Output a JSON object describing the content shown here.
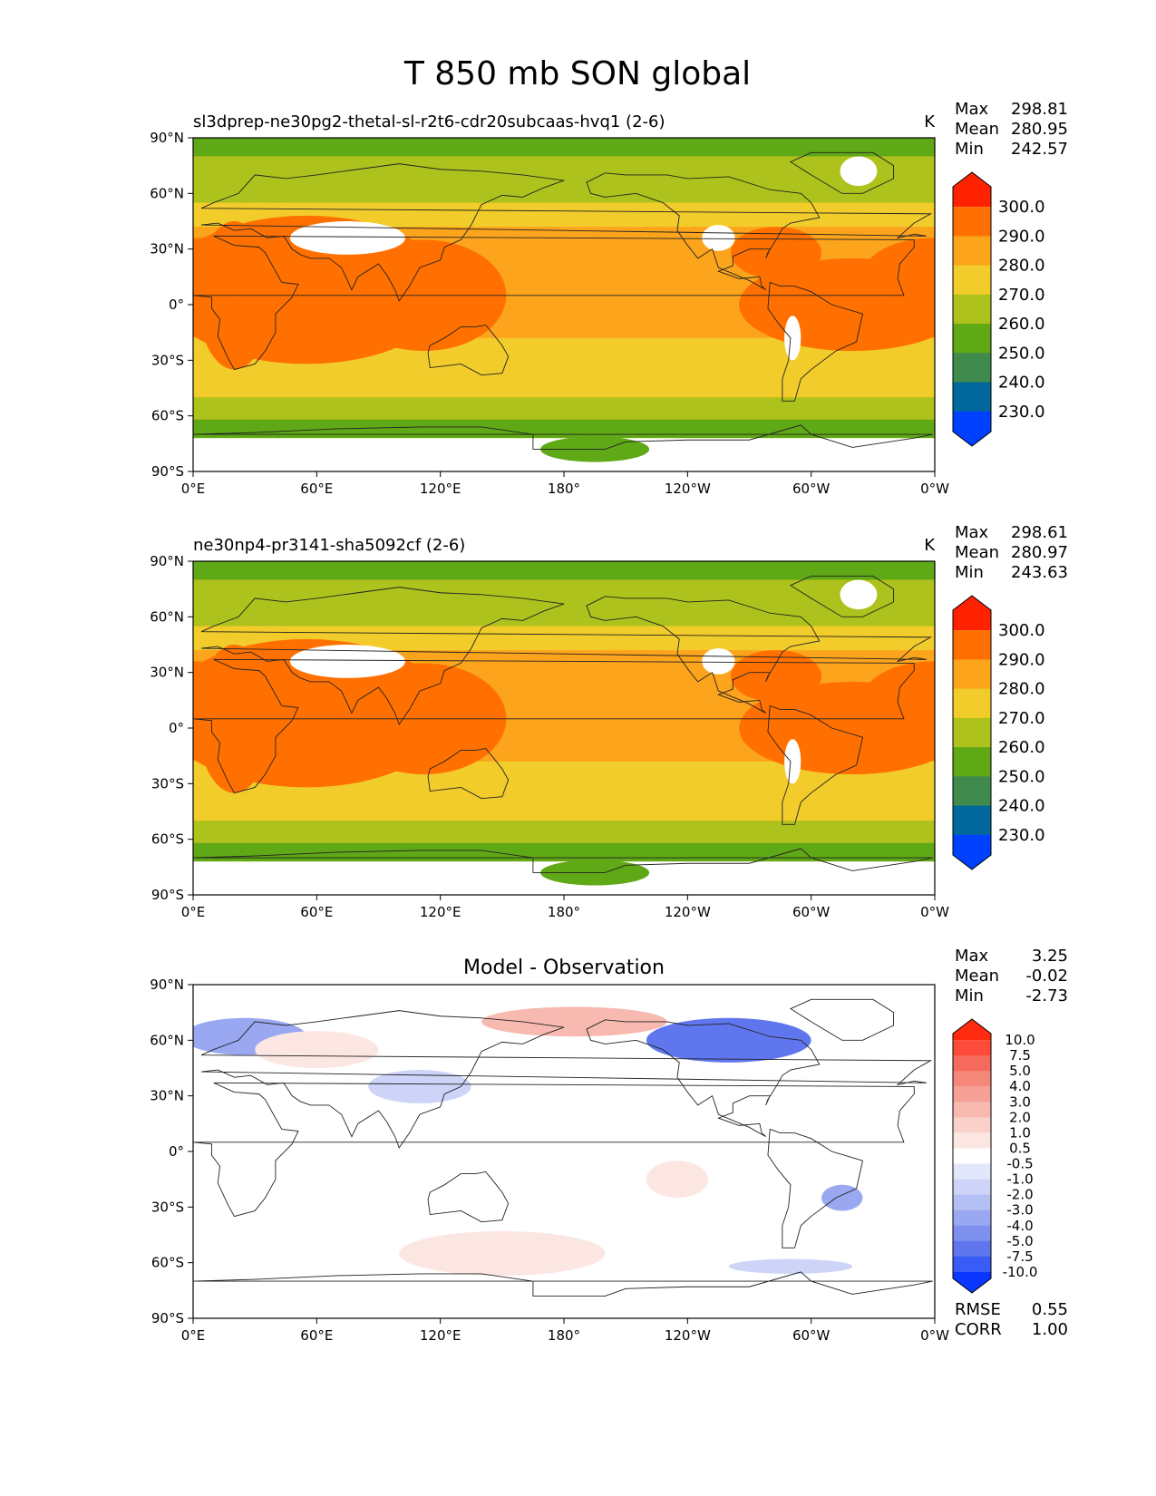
{
  "figure": {
    "title": "T 850 mb SON global"
  },
  "axes": {
    "lon_ticks": [
      "0°E",
      "60°E",
      "120°E",
      "180°",
      "120°W",
      "60°W",
      "0°W"
    ],
    "lat_ticks": [
      "90°N",
      "60°N",
      "30°N",
      "0°",
      "30°S",
      "60°S",
      "90°S"
    ]
  },
  "chart_data": [
    {
      "type": "heatmap",
      "title": "sl3dprep-ne30pg2-thetal-sl-r2t6-cdr20subcaas-hvq1 (2-6)",
      "units": "K",
      "stats": {
        "Max": "298.81",
        "Mean": "280.95",
        "Min": "242.57"
      },
      "x_range": [
        0,
        360
      ],
      "y_range": [
        -90,
        90
      ],
      "colorbar": {
        "levels": [
          "300.0",
          "290.0",
          "280.0",
          "270.0",
          "260.0",
          "250.0",
          "240.0",
          "230.0"
        ],
        "colors": [
          "#ff2200",
          "#ff7000",
          "#fca41c",
          "#f2cc2a",
          "#adc21c",
          "#5fa816",
          "#3f8a4c",
          "#00689a",
          "#0040ff"
        ],
        "extend": "both"
      }
    },
    {
      "type": "heatmap",
      "title": "ne30np4-pr3141-sha5092cf (2-6)",
      "units": "K",
      "stats": {
        "Max": "298.61",
        "Mean": "280.97",
        "Min": "243.63"
      },
      "x_range": [
        0,
        360
      ],
      "y_range": [
        -90,
        90
      ],
      "colorbar": {
        "levels": [
          "300.0",
          "290.0",
          "280.0",
          "270.0",
          "260.0",
          "250.0",
          "240.0",
          "230.0"
        ],
        "colors": [
          "#ff2200",
          "#ff7000",
          "#fca41c",
          "#f2cc2a",
          "#adc21c",
          "#5fa816",
          "#3f8a4c",
          "#00689a",
          "#0040ff"
        ],
        "extend": "both"
      }
    },
    {
      "type": "heatmap",
      "title": "Model - Observation",
      "units": "",
      "stats": {
        "Max": "3.25",
        "Mean": "-0.02",
        "Min": "-2.73"
      },
      "metrics": {
        "RMSE": "0.55",
        "CORR": "1.00"
      },
      "x_range": [
        0,
        360
      ],
      "y_range": [
        -90,
        90
      ],
      "colorbar": {
        "levels": [
          "10.0",
          "7.5",
          "5.0",
          "4.0",
          "3.0",
          "2.0",
          "1.0",
          "0.5",
          "-0.5",
          "-1.0",
          "-2.0",
          "-3.0",
          "-4.0",
          "-5.0",
          "-7.5",
          "-10.0"
        ],
        "colors": [
          "#ff2a10",
          "#ff4c3a",
          "#f66a5e",
          "#f58878",
          "#f5a196",
          "#f7b9b0",
          "#f9d1ca",
          "#fbe6e2",
          "#ffffff",
          "#e3e7fb",
          "#cdd4f8",
          "#b4c0f4",
          "#99a8f0",
          "#7d90ee",
          "#5f76ee",
          "#3a5cf6",
          "#0a36ff"
        ],
        "extend": "both"
      }
    }
  ],
  "stat_labels": [
    "Max",
    "Mean",
    "Min"
  ],
  "metric_labels": [
    "RMSE",
    "CORR"
  ]
}
